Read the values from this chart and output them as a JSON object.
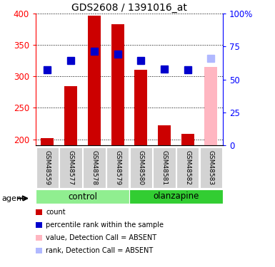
{
  "title": "GDS2608 / 1391016_at",
  "samples": [
    "GSM48559",
    "GSM48577",
    "GSM48578",
    "GSM48579",
    "GSM48580",
    "GSM48581",
    "GSM48582",
    "GSM48583"
  ],
  "bar_values": [
    202,
    284,
    396,
    383,
    310,
    222,
    208,
    315
  ],
  "bar_absent": [
    false,
    false,
    false,
    false,
    false,
    false,
    false,
    true
  ],
  "rank_values": [
    310,
    325,
    340,
    335,
    325,
    312,
    310,
    328
  ],
  "rank_absent": [
    false,
    false,
    false,
    false,
    false,
    false,
    false,
    true
  ],
  "groups": [
    {
      "label": "control",
      "start": 0,
      "end": 4,
      "color": "#90ee90"
    },
    {
      "label": "olanzapine",
      "start": 4,
      "end": 8,
      "color": "#32cd32"
    }
  ],
  "ylim_left": [
    190,
    400
  ],
  "ylim_right": [
    0,
    100
  ],
  "yticks_left": [
    200,
    250,
    300,
    350,
    400
  ],
  "yticks_right": [
    0,
    25,
    50,
    75,
    100
  ],
  "bar_color": "#cc0000",
  "bar_absent_color": "#ffb6c1",
  "rank_color": "#0000cc",
  "rank_absent_color": "#b0b8ff",
  "legend_items": [
    {
      "label": "count",
      "color": "#cc0000"
    },
    {
      "label": "percentile rank within the sample",
      "color": "#0000cc"
    },
    {
      "label": "value, Detection Call = ABSENT",
      "color": "#ffb6c1"
    },
    {
      "label": "rank, Detection Call = ABSENT",
      "color": "#b0b8ff"
    }
  ],
  "agent_label": "agent",
  "bar_width": 0.55,
  "rank_marker_size": 7
}
